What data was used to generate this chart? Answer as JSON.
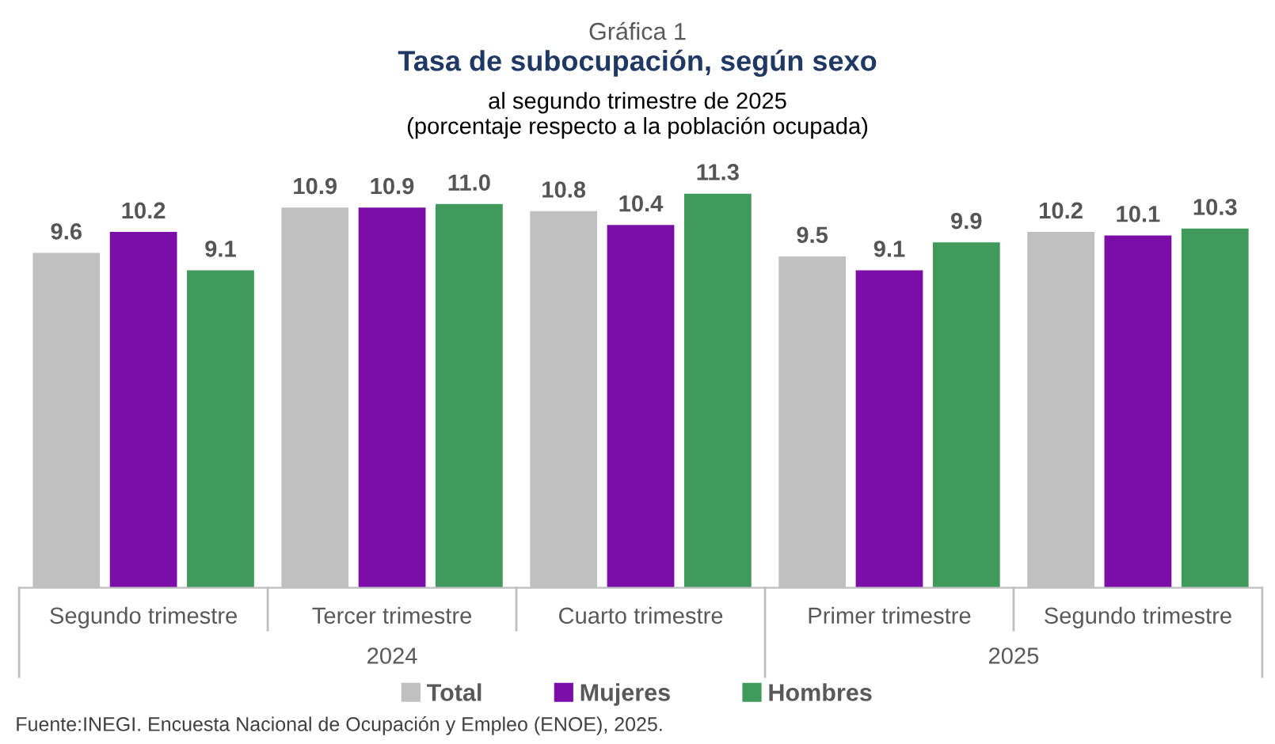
{
  "chart_data": {
    "type": "bar",
    "title": "Tasa de subocupación, según sexo",
    "subtitle": "al segundo trimestre de 2025\n(porcentaje respecto a la población ocupada)",
    "categories": [
      "Segundo trimestre",
      "Tercer trimestre",
      "Cuarto trimestre",
      "Primer trimestre",
      "Segundo trimestre"
    ],
    "series": [
      {
        "name": "Total",
        "color": "#c0c0c0",
        "values": [
          9.6,
          10.9,
          10.8,
          9.5,
          10.2
        ],
        "value_labels": [
          "9.6",
          "10.9",
          "10.8",
          "9.5",
          "10.2"
        ]
      },
      {
        "name": "Mujeres",
        "color": "#7a0ea6",
        "values": [
          10.2,
          10.9,
          10.4,
          9.1,
          10.1
        ],
        "value_labels": [
          "10.2",
          "10.9",
          "10.4",
          "9.1",
          "10.1"
        ]
      },
      {
        "name": "Hombres",
        "color": "#3f9a5c",
        "values": [
          9.1,
          11.0,
          11.3,
          9.9,
          10.3
        ],
        "value_labels": [
          "9.1",
          "11.0",
          "11.3",
          "9.9",
          "10.3"
        ]
      }
    ],
    "legend": "bottom",
    "annotations": [
      "Gráfica 1",
      "2024",
      "2025",
      "Fuente:INEGI. Encuesta Nacional de Ocupación y Empleo (ENOE), 2025."
    ]
  }
}
